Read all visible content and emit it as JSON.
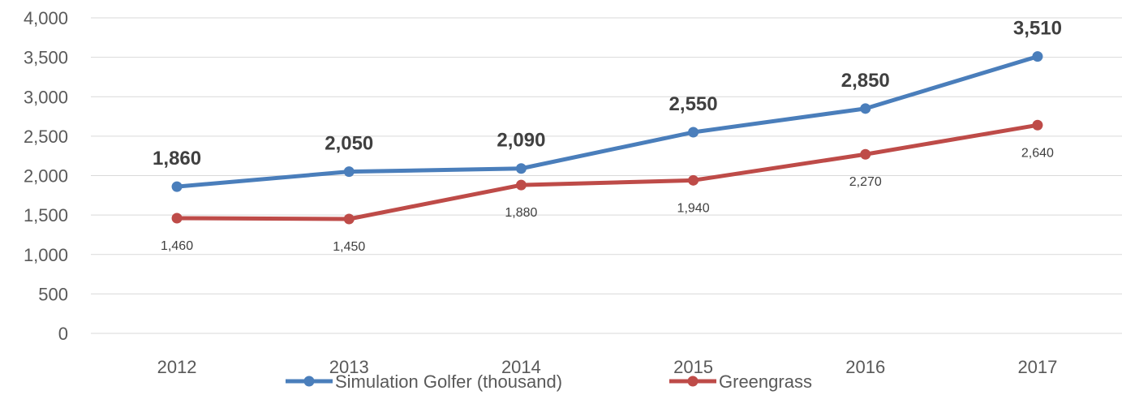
{
  "chart_data": {
    "type": "line",
    "categories": [
      "2012",
      "2013",
      "2014",
      "2015",
      "2016",
      "2017"
    ],
    "ylim": [
      0,
      4000
    ],
    "yticks": [
      "0",
      "500",
      "1,000",
      "1,500",
      "2,000",
      "2,500",
      "3,000",
      "3,500",
      "4,000"
    ],
    "grid": true,
    "legend_position": "bottom",
    "series": [
      {
        "name": "Simulation Golfer (thousand)",
        "color": "#4a7ebb",
        "values": [
          1860,
          2050,
          2090,
          2550,
          2850,
          3510
        ],
        "labels": [
          "1,860",
          "2,050",
          "2,090",
          "2,550",
          "2,850",
          "3,510"
        ],
        "label_style": "bold-above"
      },
      {
        "name": "Greengrass",
        "color": "#be4b48",
        "values": [
          1460,
          1450,
          1880,
          1940,
          2270,
          2640
        ],
        "labels": [
          "1,460",
          "1,450",
          "1,880",
          "1,940",
          "2,270",
          "2,640"
        ],
        "label_style": "small-below"
      }
    ]
  }
}
